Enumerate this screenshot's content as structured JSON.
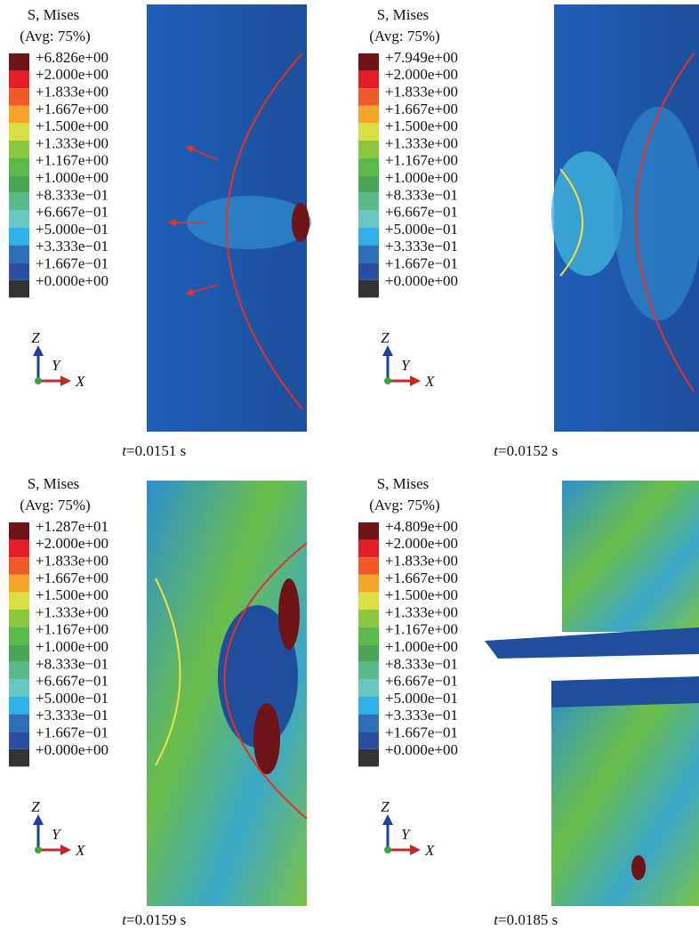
{
  "panels": [
    {
      "legend_title": "S, Mises",
      "legend_subtitle": "(Avg: 75%)",
      "legend_labels": [
        "+6.826e+00",
        "+2.000e+00",
        "+1.833e+00",
        "+1.667e+00",
        "+1.500e+00",
        "+1.333e+00",
        "+1.167e+00",
        "+1.000e+00",
        "+8.333e−01",
        "+6.667e−01",
        "+5.000e−01",
        "+3.333e−01",
        "+1.667e−01",
        "+0.000e+00"
      ],
      "axis_z": "Z",
      "axis_y": "Y",
      "axis_x": "X",
      "caption_var": "t",
      "caption": "=0.0151 s"
    },
    {
      "legend_title": "S, Mises",
      "legend_subtitle": "(Avg: 75%)",
      "legend_labels": [
        "+7.949e+00",
        "+2.000e+00",
        "+1.833e+00",
        "+1.667e+00",
        "+1.500e+00",
        "+1.333e+00",
        "+1.167e+00",
        "+1.000e+00",
        "+8.333e−01",
        "+6.667e−01",
        "+5.000e−01",
        "+3.333e−01",
        "+1.667e−01",
        "+0.000e+00"
      ],
      "axis_z": "Z",
      "axis_y": "Y",
      "axis_x": "X",
      "caption_var": "t",
      "caption": "=0.0152 s"
    },
    {
      "legend_title": "S, Mises",
      "legend_subtitle": "(Avg: 75%)",
      "legend_labels": [
        "+1.287e+01",
        "+2.000e+00",
        "+1.833e+00",
        "+1.667e+00",
        "+1.500e+00",
        "+1.333e+00",
        "+1.167e+00",
        "+1.000e+00",
        "+8.333e−01",
        "+6.667e−01",
        "+5.000e−01",
        "+3.333e−01",
        "+1.667e−01",
        "+0.000e+00"
      ],
      "axis_z": "Z",
      "axis_y": "Y",
      "axis_x": "X",
      "caption_var": "t",
      "caption": "=0.0159 s"
    },
    {
      "legend_title": "S, Mises",
      "legend_subtitle": "(Avg: 75%)",
      "legend_labels": [
        "+4.809e+00",
        "+2.000e+00",
        "+1.833e+00",
        "+1.667e+00",
        "+1.500e+00",
        "+1.333e+00",
        "+1.167e+00",
        "+1.000e+00",
        "+8.333e−01",
        "+6.667e−01",
        "+5.000e−01",
        "+3.333e−01",
        "+1.667e−01",
        "+0.000e+00"
      ],
      "axis_z": "Z",
      "axis_y": "Y",
      "axis_x": "X",
      "caption_var": "t",
      "caption": "=0.0185 s"
    }
  ]
}
